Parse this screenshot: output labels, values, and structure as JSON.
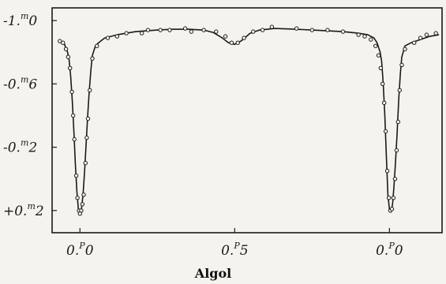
{
  "chart_data": {
    "type": "line",
    "title": "Algol",
    "xlabel": "",
    "ylabel": "",
    "x_ticks": [
      {
        "value": 0.0,
        "label": "0.0",
        "sup": "P"
      },
      {
        "value": 0.5,
        "label": "0.5",
        "sup": "P"
      },
      {
        "value": 1.0,
        "label": "0.0",
        "sup": "P"
      }
    ],
    "y_ticks": [
      {
        "value": -1.0,
        "label": "-1.0",
        "sup": "m"
      },
      {
        "value": -0.6,
        "label": "-0.6",
        "sup": "m"
      },
      {
        "value": -0.2,
        "label": "-0.2",
        "sup": "m"
      },
      {
        "value": 0.2,
        "label": "+0.2",
        "sup": "m"
      }
    ],
    "xlim": [
      -0.09,
      1.17
    ],
    "ylim": [
      -1.08,
      0.34
    ],
    "y_inverted": true,
    "grid": false,
    "series": [
      {
        "style": "curve",
        "x": [
          -0.07,
          -0.05,
          -0.04,
          -0.035,
          -0.03,
          -0.025,
          -0.02,
          -0.015,
          -0.01,
          -0.005,
          0.0,
          0.005,
          0.01,
          0.015,
          0.02,
          0.025,
          0.03,
          0.035,
          0.04,
          0.05,
          0.06,
          0.08,
          0.12,
          0.18,
          0.25,
          0.3,
          0.35,
          0.4,
          0.43,
          0.46,
          0.48,
          0.5,
          0.52,
          0.55,
          0.58,
          0.63,
          0.7,
          0.75,
          0.8,
          0.85,
          0.9,
          0.93,
          0.95,
          0.96,
          0.97,
          0.975,
          0.98,
          0.985,
          0.99,
          0.995,
          1.0,
          1.005,
          1.01,
          1.015,
          1.02,
          1.025,
          1.03,
          1.035,
          1.04,
          1.05,
          1.07,
          1.1,
          1.13,
          1.16
        ],
        "y": [
          -0.87,
          -0.85,
          -0.8,
          -0.75,
          -0.65,
          -0.5,
          -0.32,
          -0.1,
          0.08,
          0.19,
          0.22,
          0.19,
          0.1,
          -0.05,
          -0.22,
          -0.4,
          -0.55,
          -0.68,
          -0.78,
          -0.84,
          -0.86,
          -0.89,
          -0.91,
          -0.93,
          -0.94,
          -0.945,
          -0.945,
          -0.94,
          -0.925,
          -0.89,
          -0.86,
          -0.85,
          -0.87,
          -0.92,
          -0.94,
          -0.95,
          -0.945,
          -0.94,
          -0.935,
          -0.93,
          -0.92,
          -0.91,
          -0.89,
          -0.86,
          -0.8,
          -0.74,
          -0.6,
          -0.4,
          -0.15,
          0.1,
          0.19,
          0.21,
          0.16,
          0.04,
          -0.12,
          -0.3,
          -0.5,
          -0.66,
          -0.77,
          -0.84,
          -0.86,
          -0.88,
          -0.9,
          -0.91
        ]
      },
      {
        "style": "points",
        "x": [
          -0.065,
          -0.055,
          -0.045,
          -0.038,
          -0.032,
          -0.026,
          -0.022,
          -0.018,
          -0.012,
          -0.008,
          -0.003,
          0.0,
          0.004,
          0.008,
          0.012,
          0.018,
          0.022,
          0.026,
          0.032,
          0.04,
          0.055,
          0.09,
          0.12,
          0.15,
          0.2,
          0.22,
          0.26,
          0.29,
          0.34,
          0.36,
          0.4,
          0.44,
          0.47,
          0.49,
          0.51,
          0.53,
          0.56,
          0.59,
          0.62,
          0.7,
          0.75,
          0.8,
          0.85,
          0.9,
          0.92,
          0.94,
          0.955,
          0.965,
          0.972,
          0.978,
          0.983,
          0.988,
          0.993,
          0.998,
          1.003,
          1.008,
          1.013,
          1.018,
          1.023,
          1.028,
          1.033,
          1.04,
          1.05,
          1.08,
          1.1,
          1.12,
          1.15
        ],
        "y": [
          -0.87,
          -0.86,
          -0.82,
          -0.77,
          -0.7,
          -0.55,
          -0.4,
          -0.25,
          -0.02,
          0.12,
          0.2,
          0.22,
          0.2,
          0.16,
          0.1,
          -0.1,
          -0.26,
          -0.38,
          -0.56,
          -0.76,
          -0.84,
          -0.89,
          -0.9,
          -0.92,
          -0.92,
          -0.94,
          -0.94,
          -0.94,
          -0.95,
          -0.93,
          -0.94,
          -0.93,
          -0.9,
          -0.86,
          -0.86,
          -0.89,
          -0.93,
          -0.94,
          -0.96,
          -0.95,
          -0.94,
          -0.94,
          -0.93,
          -0.91,
          -0.9,
          -0.88,
          -0.84,
          -0.78,
          -0.7,
          -0.6,
          -0.48,
          -0.3,
          -0.05,
          0.12,
          0.2,
          0.19,
          0.12,
          0.0,
          -0.18,
          -0.36,
          -0.56,
          -0.72,
          -0.82,
          -0.86,
          -0.89,
          -0.91,
          -0.92
        ]
      }
    ]
  }
}
